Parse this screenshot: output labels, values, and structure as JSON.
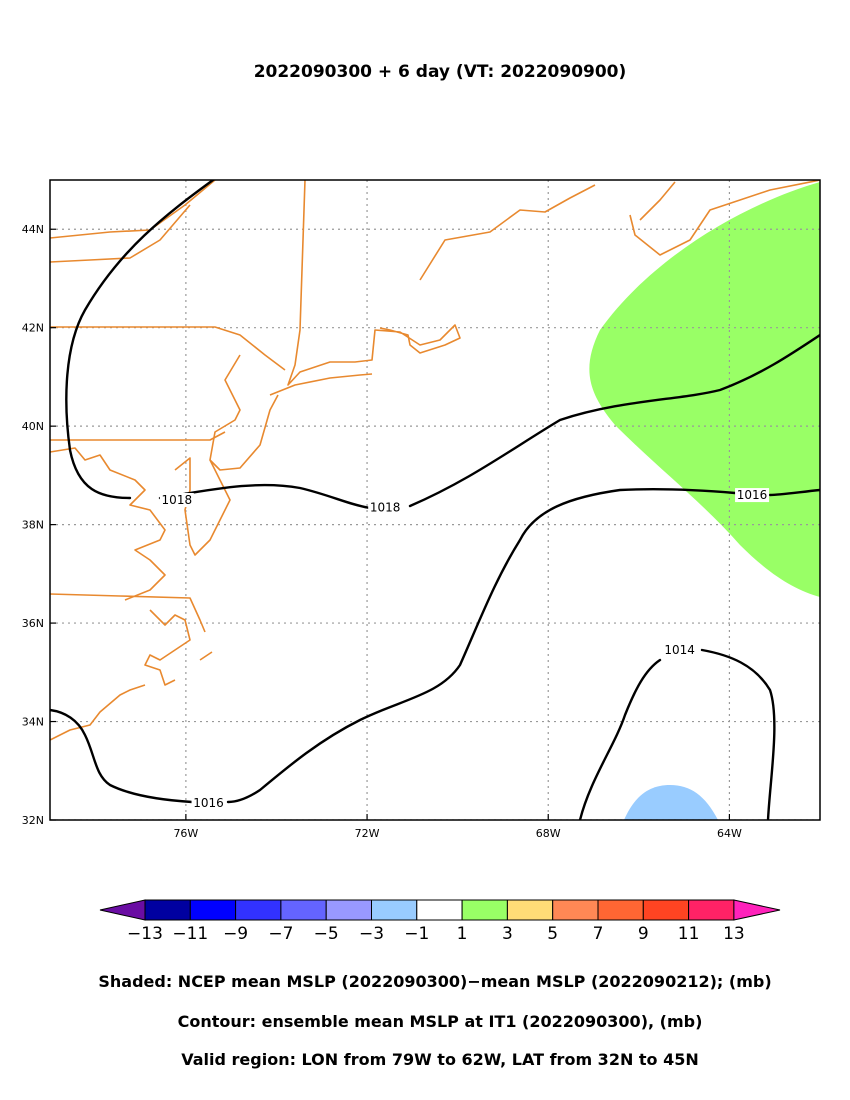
{
  "title": "2022090300 + 6 day (VT: 2022090900)",
  "map": {
    "lon_range": [
      -79,
      -62
    ],
    "lat_range": [
      32,
      45
    ],
    "gridlines": "dotted",
    "x_ticks": [
      {
        "lon": -76,
        "label": "76W"
      },
      {
        "lon": -72,
        "label": "72W"
      },
      {
        "lon": -68,
        "label": "68W"
      },
      {
        "lon": -64,
        "label": "64W"
      }
    ],
    "y_ticks": [
      {
        "lat": 32,
        "label": "32N"
      },
      {
        "lat": 34,
        "label": "34N"
      },
      {
        "lat": 36,
        "label": "36N"
      },
      {
        "lat": 38,
        "label": "38N"
      },
      {
        "lat": 40,
        "label": "40N"
      },
      {
        "lat": 42,
        "label": "42N"
      },
      {
        "lat": 44,
        "label": "44N"
      }
    ],
    "coastline_color": "#e8892f",
    "contour_color": "#000000",
    "shaded_regions": [
      {
        "name": "positive-anomaly",
        "class": "1 to 3",
        "color": "#99ff66"
      },
      {
        "name": "negative-anomaly",
        "class": "-3 to -1",
        "color": "#99ccff"
      }
    ],
    "contour_labels": [
      {
        "text": "1018",
        "lon": -76.2,
        "lat": 38.5
      },
      {
        "text": "1018",
        "lon": -71.6,
        "lat": 38.35
      },
      {
        "text": "1016",
        "lon": -63.5,
        "lat": 38.6
      },
      {
        "text": "1016",
        "lon": -75.5,
        "lat": 32.35
      },
      {
        "text": "1014",
        "lon": -65.1,
        "lat": 35.45
      }
    ]
  },
  "colorbar": {
    "colors": [
      "#6a0da3",
      "#0000a0",
      "#0000ff",
      "#3232ff",
      "#6464ff",
      "#9999ff",
      "#99ccff",
      "#ffffff",
      "#99ff66",
      "#ffdd77",
      "#ff8855",
      "#ff6633",
      "#ff4422",
      "#ff2266",
      "#ff22bb"
    ],
    "tick_labels": [
      "−13",
      "−11",
      "−9",
      "−7",
      "−5",
      "−3",
      "−1",
      "1",
      "3",
      "5",
      "7",
      "9",
      "11",
      "13"
    ]
  },
  "captions": [
    "Shaded: NCEP mean MSLP (2022090300)−mean MSLP (2022090212); (mb)",
    "Contour: ensemble mean MSLP at IT1 (2022090300), (mb)",
    "Valid region: LON from 79W to 62W, LAT from 32N to 45N"
  ]
}
